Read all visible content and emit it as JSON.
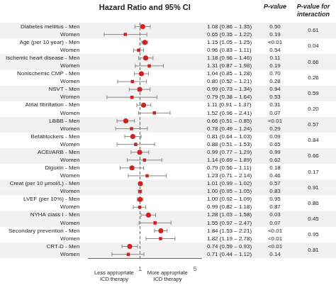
{
  "chart_data": {
    "type": "forest",
    "title": "Hazard Ratio and 95% CI",
    "xlabel": [
      "Less appropriate\nICD therapy",
      "More appropriate\nICD therapy"
    ],
    "categories": [
      "Diabetes mellitus - Men",
      "Women",
      "Age (per 10 year) - Men",
      "Women",
      "Ischemic heart disease - Men",
      "Women",
      "Nonischemic CMP - Men",
      "Women",
      "NSVT - Men",
      "Women",
      "Atrial fibrillation - Men",
      "Women",
      "LBBB - Men",
      "Women",
      "Betablockers - Men",
      "Women",
      "ACEi/ARB - Men",
      "Women",
      "Digoxin - Men",
      "Women",
      "Creat (per 10 μmol/L) - Men",
      "Women",
      "LVEF (per 10%) - Men",
      "Women",
      "NYHA class I - Men",
      "Women",
      "Secondary prevention - Men",
      "Women",
      "CRT-D - Men",
      "Women"
    ],
    "series": [
      {
        "marker": "circle",
        "values": [
          1.08,
          null,
          1.15,
          null,
          1.18,
          null,
          1.04,
          null,
          0.99,
          null,
          1.11,
          null,
          0.66,
          null,
          0.81,
          null,
          0.99,
          null,
          0.79,
          null,
          1.01,
          null,
          1.0,
          null,
          1.28,
          null,
          1.84,
          null,
          0.74,
          null
        ],
        "lower": [
          0.86,
          null,
          1.05,
          null,
          0.96,
          null,
          0.85,
          null,
          0.73,
          null,
          0.91,
          null,
          0.51,
          null,
          0.64,
          null,
          0.77,
          null,
          0.56,
          null,
          0.99,
          null,
          0.92,
          null,
          1.03,
          null,
          1.53,
          null,
          0.59,
          null
        ],
        "upper": [
          1.35,
          null,
          1.25,
          null,
          1.46,
          null,
          1.28,
          null,
          1.34,
          null,
          1.37,
          null,
          0.85,
          null,
          1.03,
          null,
          1.29,
          null,
          1.11,
          null,
          1.02,
          null,
          1.09,
          null,
          1.58,
          null,
          2.21,
          null,
          0.93,
          null
        ],
        "value_labels": [
          "1.08 (0.86 – 1.35)",
          null,
          "1.15 (1.05 – 1.25)",
          null,
          "1.18 (0.96 – 1.46)",
          null,
          "1.04 (0.85 – 1.28)",
          null,
          "0.99 (0.73 – 1.34)",
          null,
          "1.11 (0.91 – 1.37)",
          null,
          "0.66 (0.51 – 0.85)",
          null,
          "0.81 (0.64 – 1.03)",
          null,
          "0.99 (0.77 – 1.29)",
          null,
          "0.79 (0.56 – 1.11)",
          null,
          "1.01 (0.99 – 1.02)",
          null,
          "1.00 (0.92 – 1.09)",
          null,
          "1.28 (1.03 – 1.58)",
          null,
          "1.84 (1.53 – 2.21)",
          null,
          "0.74 (0.59 – 0.93)",
          null
        ]
      },
      {
        "marker": "square",
        "values": [
          null,
          0.65,
          null,
          0.96,
          null,
          1.31,
          null,
          0.8,
          null,
          0.79,
          null,
          1.52,
          null,
          0.78,
          null,
          0.88,
          null,
          1.14,
          null,
          1.23,
          null,
          1.0,
          null,
          0.99,
          null,
          1.55,
          null,
          1.82,
          null,
          0.71
        ],
        "lower": [
          null,
          0.35,
          null,
          0.83,
          null,
          0.87,
          null,
          0.52,
          null,
          0.38,
          null,
          0.96,
          null,
          0.49,
          null,
          0.51,
          null,
          0.69,
          null,
          0.71,
          null,
          0.95,
          null,
          0.82,
          null,
          0.97,
          null,
          1.19,
          null,
          0.44
        ],
        "upper": [
          null,
          1.22,
          null,
          1.11,
          null,
          1.98,
          null,
          1.21,
          null,
          1.64,
          null,
          2.41,
          null,
          1.24,
          null,
          1.53,
          null,
          1.89,
          null,
          2.14,
          null,
          1.05,
          null,
          1.18,
          null,
          2.47,
          null,
          2.78,
          null,
          1.12
        ],
        "value_labels": [
          null,
          "0.65 (0.35 – 1.22)",
          null,
          "0.96 (0.83 – 1.11)",
          null,
          "1.31 (0.87 – 1.98)",
          null,
          "0.80 (0.52 – 1.21)",
          null,
          "0.79 (0.38 – 1.64)",
          null,
          "1.52 (0.96 – 2.41)",
          null,
          "0.78 (0.49 – 1.24)",
          null,
          "0.88 (0.51 – 1.53)",
          null,
          "1.14 (0.69 – 1.89)",
          null,
          "1.23 (0.71 – 2.14)",
          null,
          "1.00 (0.95 – 1.05)",
          null,
          "0.99 (0.82 – 1.18)",
          null,
          "1.55 (0.97 – 2.47)",
          null,
          "1.82 (1.19 – 2.78)",
          null,
          "0.71 (0.44 – 1.12)"
        ]
      }
    ],
    "columns": [
      {
        "title": "P-value",
        "labels": [
          "0.50",
          "0.19",
          "<0.01",
          "0.54",
          "0.11",
          "0.19",
          "0.70",
          "0.28",
          "0.94",
          "0.53",
          "0.31",
          "0.07",
          "<0.01",
          "0.29",
          "0.09",
          "0.65",
          "0.99",
          "0.62",
          "0.18",
          "0.46",
          "0.57",
          "0.83",
          "0.95",
          "0.87",
          "0.03",
          "0.07",
          "<0.01",
          "<0.01",
          "<0.01",
          "0.14"
        ]
      },
      {
        "title": "P-value for\ninteraction",
        "labels": [
          "0.61",
          null,
          "0.04",
          null,
          "0.66",
          null,
          "0.26",
          null,
          "0.59",
          null,
          "0.20",
          null,
          "0.57",
          null,
          "0.84",
          null,
          "0.66",
          null,
          "0.17",
          null,
          "0.91",
          null,
          "0.86",
          null,
          "0.45",
          null,
          "0.95",
          null,
          "0.81",
          null
        ]
      }
    ],
    "annotations": [
      {
        "x": 1,
        "line_style": "dashed"
      }
    ],
    "color": "#cc2222",
    "data_labels": true,
    "log": "x",
    "xlim": [
      0.22,
      6.0
    ],
    "xticks": [
      1,
      5
    ],
    "grid": false
  }
}
